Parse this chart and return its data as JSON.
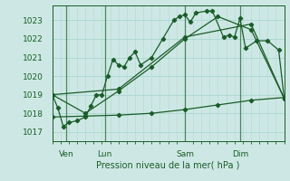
{
  "xlabel": "Pression niveau de la mer( hPa )",
  "bg_color": "#cde8e4",
  "grid_color": "#b0d8d4",
  "line_color": "#1a5c28",
  "ylim": [
    1016.5,
    1023.8
  ],
  "xlim": [
    0,
    84
  ],
  "xtick_positions": [
    5,
    19,
    48,
    68
  ],
  "xtick_labels": [
    "Ven",
    "Lun",
    "Sam",
    "Dim"
  ],
  "ytick_positions": [
    1017,
    1018,
    1019,
    1020,
    1021,
    1022,
    1023
  ],
  "line1_x": [
    0,
    2,
    4,
    6,
    9,
    12,
    14,
    16,
    18,
    20,
    22,
    24,
    26,
    28,
    30,
    32,
    36,
    40,
    44,
    46,
    48,
    50,
    52,
    56,
    58,
    62,
    64,
    66,
    68,
    70,
    74,
    78,
    82,
    84
  ],
  "line1_y": [
    1019.0,
    1018.3,
    1017.3,
    1017.5,
    1017.6,
    1017.8,
    1018.4,
    1019.0,
    1019.0,
    1020.0,
    1020.9,
    1020.6,
    1020.5,
    1021.0,
    1021.3,
    1020.6,
    1021.0,
    1022.0,
    1023.0,
    1023.2,
    1023.3,
    1022.9,
    1023.4,
    1023.5,
    1023.5,
    1022.1,
    1022.2,
    1022.1,
    1023.1,
    1021.5,
    1021.9,
    1021.9,
    1021.4,
    1018.8
  ],
  "line2_x": [
    0,
    12,
    24,
    36,
    48,
    60,
    72,
    84
  ],
  "line2_y": [
    1019.0,
    1018.0,
    1019.2,
    1020.5,
    1022.0,
    1023.2,
    1022.5,
    1018.8
  ],
  "line3_x": [
    0,
    24,
    48,
    72,
    84
  ],
  "line3_y": [
    1019.0,
    1019.3,
    1022.1,
    1022.8,
    1018.8
  ],
  "line4_x": [
    0,
    12,
    24,
    36,
    48,
    60,
    72,
    84
  ],
  "line4_y": [
    1017.8,
    1017.85,
    1017.9,
    1018.0,
    1018.2,
    1018.45,
    1018.7,
    1018.85
  ]
}
